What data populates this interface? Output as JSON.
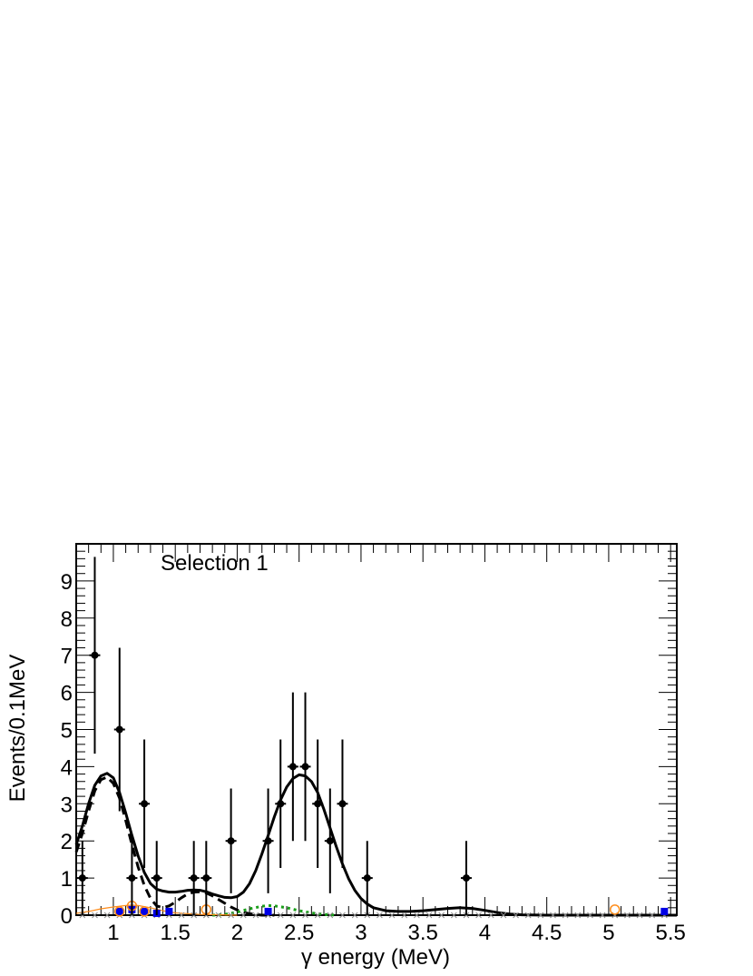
{
  "chart_data": {
    "type": "scatter",
    "annotation": "Selection 1",
    "xlabel": "γ energy (MeV)",
    "ylabel": "Events/0.1MeV",
    "xlim": [
      0.7,
      5.55
    ],
    "ylim": [
      0,
      10
    ],
    "x_ticks": [
      "1",
      "1.5",
      "2",
      "2.5",
      "3",
      "3.5",
      "4",
      "4.5",
      "5",
      "5.5"
    ],
    "y_ticks": [
      "0",
      "1",
      "2",
      "3",
      "4",
      "5",
      "6",
      "7",
      "8",
      "9"
    ],
    "grid": false,
    "data_points": [
      {
        "x": 0.75,
        "y": 1,
        "err_low": 1,
        "err_high": 1
      },
      {
        "x": 0.85,
        "y": 7,
        "err_low": 2.65,
        "err_high": 2.65
      },
      {
        "x": 1.05,
        "y": 5,
        "err_low": 2.2,
        "err_high": 2.2
      },
      {
        "x": 1.15,
        "y": 1,
        "err_low": 1,
        "err_high": 1
      },
      {
        "x": 1.25,
        "y": 3,
        "err_low": 1.73,
        "err_high": 1.73
      },
      {
        "x": 1.35,
        "y": 1,
        "err_low": 1,
        "err_high": 1
      },
      {
        "x": 1.65,
        "y": 1,
        "err_low": 1,
        "err_high": 1
      },
      {
        "x": 1.75,
        "y": 1,
        "err_low": 1,
        "err_high": 1
      },
      {
        "x": 1.95,
        "y": 2,
        "err_low": 1.41,
        "err_high": 1.41
      },
      {
        "x": 2.25,
        "y": 2,
        "err_low": 1.41,
        "err_high": 1.41
      },
      {
        "x": 2.35,
        "y": 3,
        "err_low": 1.73,
        "err_high": 1.73
      },
      {
        "x": 2.45,
        "y": 4,
        "err_low": 2,
        "err_high": 2
      },
      {
        "x": 2.55,
        "y": 4,
        "err_low": 2,
        "err_high": 2
      },
      {
        "x": 2.65,
        "y": 3,
        "err_low": 1.73,
        "err_high": 1.73
      },
      {
        "x": 2.75,
        "y": 2,
        "err_low": 1.41,
        "err_high": 1.41
      },
      {
        "x": 2.85,
        "y": 3,
        "err_low": 1.73,
        "err_high": 1.73
      },
      {
        "x": 3.05,
        "y": 1,
        "err_low": 1,
        "err_high": 1
      },
      {
        "x": 3.85,
        "y": 1,
        "err_low": 1,
        "err_high": 1
      }
    ],
    "curves": [
      {
        "style": "solid",
        "color": "#000000",
        "x": [
          0.7,
          0.75,
          0.8,
          0.85,
          0.9,
          0.95,
          1.0,
          1.05,
          1.1,
          1.15,
          1.2,
          1.25,
          1.3,
          1.35,
          1.4,
          1.45,
          1.5,
          1.55,
          1.6,
          1.65,
          1.7,
          1.75,
          1.8,
          1.85,
          1.9,
          1.95,
          2.0,
          2.05,
          2.1,
          2.15,
          2.2,
          2.25,
          2.3,
          2.35,
          2.4,
          2.45,
          2.5,
          2.55,
          2.6,
          2.65,
          2.7,
          2.75,
          2.8,
          2.85,
          2.9,
          2.95,
          3.0,
          3.05,
          3.1,
          3.2,
          3.3,
          3.4,
          3.5,
          3.6,
          3.7,
          3.8,
          3.9,
          4.0,
          4.1,
          4.2,
          4.3,
          4.5,
          5.0,
          5.55
        ],
        "y": [
          1.9,
          2.4,
          3.0,
          3.5,
          3.75,
          3.82,
          3.7,
          3.3,
          2.75,
          2.15,
          1.6,
          1.15,
          0.85,
          0.7,
          0.65,
          0.62,
          0.62,
          0.64,
          0.67,
          0.68,
          0.67,
          0.63,
          0.57,
          0.52,
          0.48,
          0.47,
          0.5,
          0.62,
          0.85,
          1.2,
          1.65,
          2.15,
          2.65,
          3.1,
          3.45,
          3.68,
          3.78,
          3.75,
          3.6,
          3.3,
          2.85,
          2.35,
          1.85,
          1.38,
          0.98,
          0.67,
          0.45,
          0.3,
          0.2,
          0.12,
          0.1,
          0.1,
          0.12,
          0.15,
          0.18,
          0.2,
          0.18,
          0.13,
          0.07,
          0.03,
          0.01,
          0.0,
          0.0,
          0.0
        ]
      },
      {
        "style": "dashed",
        "color": "#000000",
        "x": [
          0.7,
          0.75,
          0.8,
          0.85,
          0.9,
          0.95,
          1.0,
          1.05,
          1.1,
          1.15,
          1.2,
          1.25,
          1.3,
          1.35,
          1.4,
          1.45,
          1.5,
          1.55,
          1.6,
          1.65,
          1.7,
          1.75,
          1.8,
          1.85,
          1.9,
          1.95,
          2.0,
          2.05,
          2.1,
          2.15,
          2.2,
          2.3
        ],
        "y": [
          1.7,
          2.2,
          2.8,
          3.35,
          3.65,
          3.72,
          3.55,
          3.15,
          2.55,
          1.9,
          1.3,
          0.8,
          0.45,
          0.25,
          0.2,
          0.25,
          0.35,
          0.47,
          0.57,
          0.62,
          0.63,
          0.6,
          0.52,
          0.42,
          0.32,
          0.22,
          0.14,
          0.08,
          0.04,
          0.02,
          0.0,
          0.0
        ]
      },
      {
        "style": "dotted",
        "color": "#1a9e1a",
        "x": [
          1.8,
          1.9,
          2.0,
          2.1,
          2.2,
          2.25,
          2.3,
          2.4,
          2.5,
          2.6,
          2.7,
          2.8
        ],
        "y": [
          0.0,
          0.02,
          0.08,
          0.17,
          0.24,
          0.26,
          0.25,
          0.2,
          0.12,
          0.06,
          0.02,
          0.0
        ]
      },
      {
        "style": "solid",
        "color": "#ff8c1a",
        "x": [
          0.7,
          0.8,
          0.9,
          1.0,
          1.1,
          1.15,
          1.2,
          1.3,
          1.4,
          1.5,
          1.7,
          2.0
        ],
        "y": [
          0.05,
          0.1,
          0.17,
          0.22,
          0.26,
          0.27,
          0.26,
          0.2,
          0.12,
          0.06,
          0.02,
          0.0
        ]
      }
    ],
    "orange_circles": [
      {
        "x": 1.05,
        "y": 0.1
      },
      {
        "x": 1.15,
        "y": 0.25
      },
      {
        "x": 1.25,
        "y": 0.1
      },
      {
        "x": 1.75,
        "y": 0.15
      },
      {
        "x": 5.05,
        "y": 0.15
      }
    ],
    "blue_squares": [
      {
        "x": 1.05,
        "y": 0.1
      },
      {
        "x": 1.15,
        "y": 0.15
      },
      {
        "x": 1.25,
        "y": 0.1
      },
      {
        "x": 1.35,
        "y": 0.05
      },
      {
        "x": 1.45,
        "y": 0.1
      },
      {
        "x": 2.25,
        "y": 0.1
      },
      {
        "x": 5.45,
        "y": 0.1
      }
    ],
    "colors": {
      "data": "#000000",
      "fit_total": "#000000",
      "green_dotted": "#1a9e1a",
      "orange": "#ff8c1a",
      "blue": "#0000e6",
      "markers_x": "#888888"
    }
  }
}
